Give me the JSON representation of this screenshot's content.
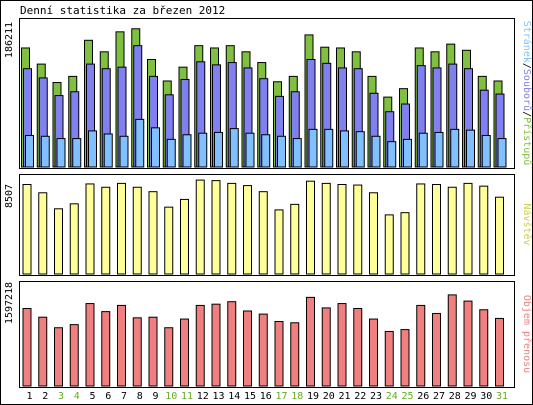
{
  "chart_data": {
    "type": "bar",
    "title": "Denní statistika za březen 2012",
    "categories": [
      "1",
      "2",
      "3",
      "4",
      "5",
      "6",
      "7",
      "8",
      "9",
      "10",
      "11",
      "12",
      "13",
      "14",
      "15",
      "16",
      "17",
      "18",
      "19",
      "20",
      "21",
      "22",
      "23",
      "24",
      "25",
      "26",
      "27",
      "28",
      "29",
      "30",
      "31"
    ],
    "weekend_days": [
      "3",
      "4",
      "10",
      "11",
      "17",
      "18",
      "24",
      "25",
      "31"
    ],
    "colors": {
      "hits": "#80c040",
      "files": "#8080f0",
      "pages": "#80c0ff",
      "visits": "#ffff99",
      "kbytes": "#f08080",
      "weekday_label": "#000000",
      "weekend_label": "#66aa22",
      "frame": "#000000",
      "panel_bg": "#ffffff"
    },
    "panels": [
      {
        "name": "hits-files-pages",
        "ylabel": "186211",
        "ymax": 186211,
        "legend": [
          {
            "text": "Stránek",
            "color": "#80c0ff"
          },
          {
            "text": "/",
            "color": "#000000"
          },
          {
            "text": "Souborů",
            "color": "#8080f0"
          },
          {
            "text": "/",
            "color": "#000000"
          },
          {
            "text": "Přístupů",
            "color": "#80c040"
          }
        ],
        "series": [
          {
            "name": "Přístupů",
            "key": "hits",
            "values": [
              155000,
              134000,
              110000,
              118000,
              165000,
              150000,
              176000,
              180000,
              140000,
              112000,
              130000,
              158000,
              155000,
              158000,
              150000,
              136000,
              111000,
              118000,
              172000,
              156000,
              155000,
              150000,
              118000,
              91000,
              102000,
              155000,
              150000,
              160000,
              152000,
              118000,
              112000
            ]
          },
          {
            "name": "Souborů",
            "key": "files",
            "values": [
              128000,
              116000,
              93000,
              98000,
              134000,
              128000,
              130000,
              158000,
              118000,
              94000,
              114000,
              137000,
              133000,
              136000,
              129000,
              115000,
              92000,
              98000,
              140000,
              135000,
              129000,
              128000,
              96000,
              72000,
              82000,
              132000,
              129000,
              134000,
              128000,
              100000,
              95000
            ]
          },
          {
            "name": "Stránek",
            "key": "pages",
            "values": [
              41000,
              40000,
              37000,
              37000,
              47000,
              43000,
              40000,
              62000,
              51000,
              36000,
              42000,
              44000,
              45000,
              50000,
              44000,
              42000,
              40000,
              37000,
              49000,
              49000,
              47000,
              46000,
              40000,
              33000,
              36000,
              44000,
              45000,
              49000,
              48000,
              41000,
              37000
            ]
          }
        ]
      },
      {
        "name": "visits",
        "ylabel": "8507",
        "ymax": 8507,
        "legend": [
          {
            "text": "Návštěv",
            "color": "#cccc55"
          }
        ],
        "series": [
          {
            "name": "Návštěv",
            "key": "visits",
            "values": [
              8100,
              7350,
              5900,
              6350,
              8150,
              7850,
              8200,
              7850,
              7450,
              6050,
              6750,
              8500,
              8450,
              8200,
              8000,
              7450,
              5800,
              6300,
              8400,
              8200,
              8100,
              8050,
              7350,
              5350,
              5550,
              8150,
              8100,
              7850,
              8200,
              7950,
              6950
            ]
          }
        ]
      },
      {
        "name": "kbytes",
        "ylabel": "1597218",
        "ymax": 1597218,
        "legend": [
          {
            "text": "Objem přenosu",
            "color": "#f08080"
          }
        ],
        "series": [
          {
            "name": "Objem přenosu",
            "key": "kbytes",
            "values": [
              1250000,
              1110000,
              940000,
              990000,
              1330000,
              1200000,
              1300000,
              1100000,
              1110000,
              940000,
              1080000,
              1300000,
              1320000,
              1360000,
              1210000,
              1160000,
              1040000,
              1020000,
              1430000,
              1260000,
              1330000,
              1250000,
              1080000,
              880000,
              910000,
              1300000,
              1170000,
              1470000,
              1370000,
              1230000,
              1090000
            ]
          }
        ]
      }
    ]
  }
}
